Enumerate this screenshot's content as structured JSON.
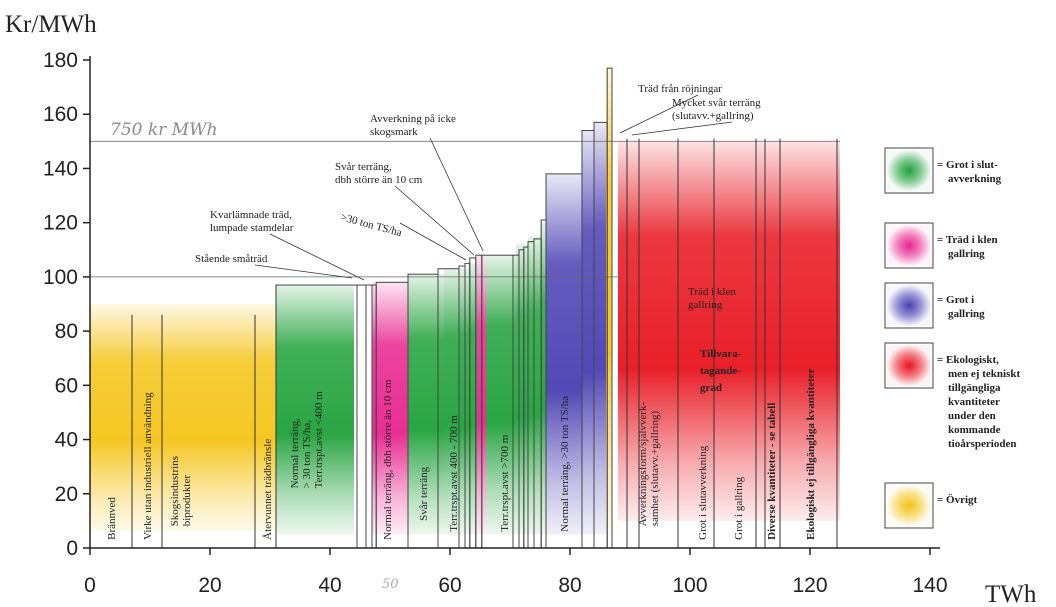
{
  "chart_data": {
    "type": "bar",
    "ylabel": "Kr/MWh",
    "xlabel": "TWh",
    "xlim": [
      0,
      140
    ],
    "ylim": [
      0,
      180
    ],
    "xticks": [
      "0",
      "20",
      "40",
      "60",
      "80",
      "100",
      "120",
      "140"
    ],
    "yticks": [
      "0",
      "20",
      "40",
      "60",
      "80",
      "100",
      "120",
      "140",
      "160",
      "180"
    ],
    "handwritten": {
      "line_label": "750 kr MWh",
      "line_value": 150,
      "tick_note": "50"
    },
    "guide_lines": [
      100
    ],
    "colors": {
      "ovrigt": "#f4c418",
      "grot_slut": "#1fa13a",
      "trad_klen": "#e8238c",
      "grot_gallring": "#4a3fb2",
      "ekologiskt": "#e8141e"
    },
    "legend": [
      {
        "color": "grot_slut",
        "label": "= Grot i slut-\navverkning"
      },
      {
        "color": "trad_klen",
        "label": "= Träd i klen\ngallring"
      },
      {
        "color": "grot_gallring",
        "label": "= Grot i\ngallring"
      },
      {
        "color": "ekologiskt",
        "label": "= Ekologiskt,\nmen ej tekniskt\ntillgängliga\nkvantiteter\nunder den\nkommande\ntioårsperioden"
      },
      {
        "color": "ovrigt",
        "label": "= Övrigt"
      }
    ],
    "regions": [
      {
        "x0": 0,
        "x1": 31,
        "top": null,
        "color": "ovrigt"
      },
      {
        "x0": 31,
        "x1": 44,
        "top": 97,
        "color": "grot_slut"
      },
      {
        "x0": 47,
        "x1": 53,
        "top": 98,
        "color": "trad_klen"
      },
      {
        "x0": 53,
        "x1": 59,
        "top": 101,
        "color": "grot_slut"
      },
      {
        "x0": 59,
        "x1": 63,
        "top": 103,
        "color": "grot_slut"
      },
      {
        "x0": 63,
        "x1": 64.5,
        "top": 105,
        "color": "grot_slut"
      },
      {
        "x0": 64.5,
        "x1": 66,
        "top": 108,
        "color": "trad_klen"
      },
      {
        "x0": 66,
        "x1": 71,
        "top": 108,
        "color": "grot_slut"
      },
      {
        "x0": 71,
        "x1": 73,
        "top": 112,
        "color": "grot_slut"
      },
      {
        "x0": 73,
        "x1": 75,
        "top": 115,
        "color": "grot_slut"
      },
      {
        "x0": 75,
        "x1": 76,
        "top": 120,
        "color": "grot_slut"
      },
      {
        "x0": 76,
        "x1": 82,
        "top": 138,
        "color": "grot_gallring"
      },
      {
        "x0": 82,
        "x1": 84,
        "top": 154,
        "color": "grot_gallring"
      },
      {
        "x0": 84,
        "x1": 86,
        "top": 157,
        "color": "grot_gallring"
      },
      {
        "x0": 86,
        "x1": 87,
        "top": 178,
        "color": "ovrigt"
      },
      {
        "x0": 88,
        "x1": 115,
        "top": null,
        "color": "ekologiskt"
      },
      {
        "x0": 115,
        "x1": 125,
        "top": null,
        "color": "ekologiskt"
      }
    ],
    "steps": [
      {
        "x0": 31,
        "x1": 44.5,
        "y": 97
      },
      {
        "x0": 44.5,
        "x1": 46,
        "y": 97
      },
      {
        "x0": 46,
        "x1": 47,
        "y": 97
      },
      {
        "x0": 47,
        "x1": 47.7,
        "y": 97
      },
      {
        "x0": 47.7,
        "x1": 53,
        "y": 98
      },
      {
        "x0": 53,
        "x1": 58,
        "y": 101
      },
      {
        "x0": 58,
        "x1": 61.5,
        "y": 103
      },
      {
        "x0": 61.5,
        "x1": 62.5,
        "y": 104
      },
      {
        "x0": 62.5,
        "x1": 63.3,
        "y": 105
      },
      {
        "x0": 63.3,
        "x1": 64.3,
        "y": 107
      },
      {
        "x0": 64.3,
        "x1": 65.3,
        "y": 108
      },
      {
        "x0": 65.3,
        "x1": 70.5,
        "y": 108
      },
      {
        "x0": 70.5,
        "x1": 71.5,
        "y": 108
      },
      {
        "x0": 71.5,
        "x1": 72.3,
        "y": 110
      },
      {
        "x0": 72.3,
        "x1": 73,
        "y": 111
      },
      {
        "x0": 73,
        "x1": 74,
        "y": 113
      },
      {
        "x0": 74,
        "x1": 75.2,
        "y": 114
      },
      {
        "x0": 75.2,
        "x1": 76,
        "y": 121
      },
      {
        "x0": 76,
        "x1": 82,
        "y": 138
      },
      {
        "x0": 82,
        "x1": 84,
        "y": 154
      },
      {
        "x0": 84,
        "x1": 86.2,
        "y": 157
      },
      {
        "x0": 86.2,
        "x1": 87,
        "y": 177
      }
    ],
    "dividers": [
      {
        "x": 7,
        "y": 86
      },
      {
        "x": 12,
        "y": 86
      },
      {
        "x": 27.5,
        "y": 86
      },
      {
        "x": 31,
        "y": 97
      },
      {
        "x": 89.5,
        "y": 151
      },
      {
        "x": 91.5,
        "y": 151
      },
      {
        "x": 98,
        "y": 151
      },
      {
        "x": 104,
        "y": 151
      },
      {
        "x": 111,
        "y": 151
      },
      {
        "x": 112.5,
        "y": 151
      },
      {
        "x": 115,
        "y": 151
      },
      {
        "x": 124.5,
        "y": 151
      }
    ],
    "vertical_labels": [
      {
        "x": 3.5,
        "y": 3,
        "text": "Brännved"
      },
      {
        "x": 9.5,
        "y": 3,
        "text": "Virke utan industriell användning"
      },
      {
        "x": 15,
        "y": 8,
        "text": "Skogsindustrins",
        "text2": "biprodukter"
      },
      {
        "x": 29.5,
        "y": 3,
        "text": "Återvunnet trädbränsle"
      },
      {
        "x": 36,
        "y": 22,
        "text": "Normal terräng,",
        "text2": "> 30 ton TS/ha,",
        "text3": "Terr.trspt.avst <400 m"
      },
      {
        "x": 49.5,
        "y": 3,
        "text": "Normal terräng, dbh större än 10 cm"
      },
      {
        "x": 55.5,
        "y": 10,
        "text": "Svår terräng"
      },
      {
        "x": 60.5,
        "y": 6,
        "text": "Terr.trspt.avst 400 - 700 m"
      },
      {
        "x": 69,
        "y": 6,
        "text": "Terr.trspt.avst >700 m"
      },
      {
        "x": 79,
        "y": 6,
        "text": "Normal terräng, >30 ton TS/ha"
      },
      {
        "x": 93,
        "y": 8,
        "text": "Avverkningsform/självverk-",
        "text2": "samhet (slutavv.+gallring)"
      },
      {
        "x": 102,
        "y": 3,
        "text": "Grot i slutavverkning"
      },
      {
        "x": 108,
        "y": 3,
        "text": "Grot i gallring"
      },
      {
        "x": 113.5,
        "y": 3,
        "text": "Diverse kvantiteter - se tabell",
        "bold": true
      },
      {
        "x": 120,
        "y": 3,
        "text": "Ekologiskt ej tillgängliga kvantiteter",
        "bold": true
      }
    ],
    "annotations": [
      {
        "text": "Stående småträd",
        "x": 47,
        "y": 97
      },
      {
        "text": "Kvarlämnade träd,",
        "text2": "lumpade stamdelar",
        "x": 46.5,
        "y": 97
      },
      {
        "text": ">30 ton TS/ha",
        "x": 63,
        "y": 104
      },
      {
        "text": "Svår terräng,",
        "text2": "dbh större än 10 cm",
        "x": 64.5,
        "y": 107
      },
      {
        "text": "Avverkning på icke",
        "text2": "skogsmark",
        "x": 65.5,
        "y": 108
      },
      {
        "text": "Träd från röjningar",
        "x": 88,
        "y": 155
      },
      {
        "text": "Mycket svår terräng",
        "text2": "(slutavv.+gallring)",
        "x": 89.5,
        "y": 152
      }
    ],
    "inner_labels": [
      {
        "text": "Träd i klen",
        "text2": "gallring"
      },
      {
        "text": "Tillvara-",
        "text2": "tagande-",
        "text3": "grad"
      }
    ]
  }
}
